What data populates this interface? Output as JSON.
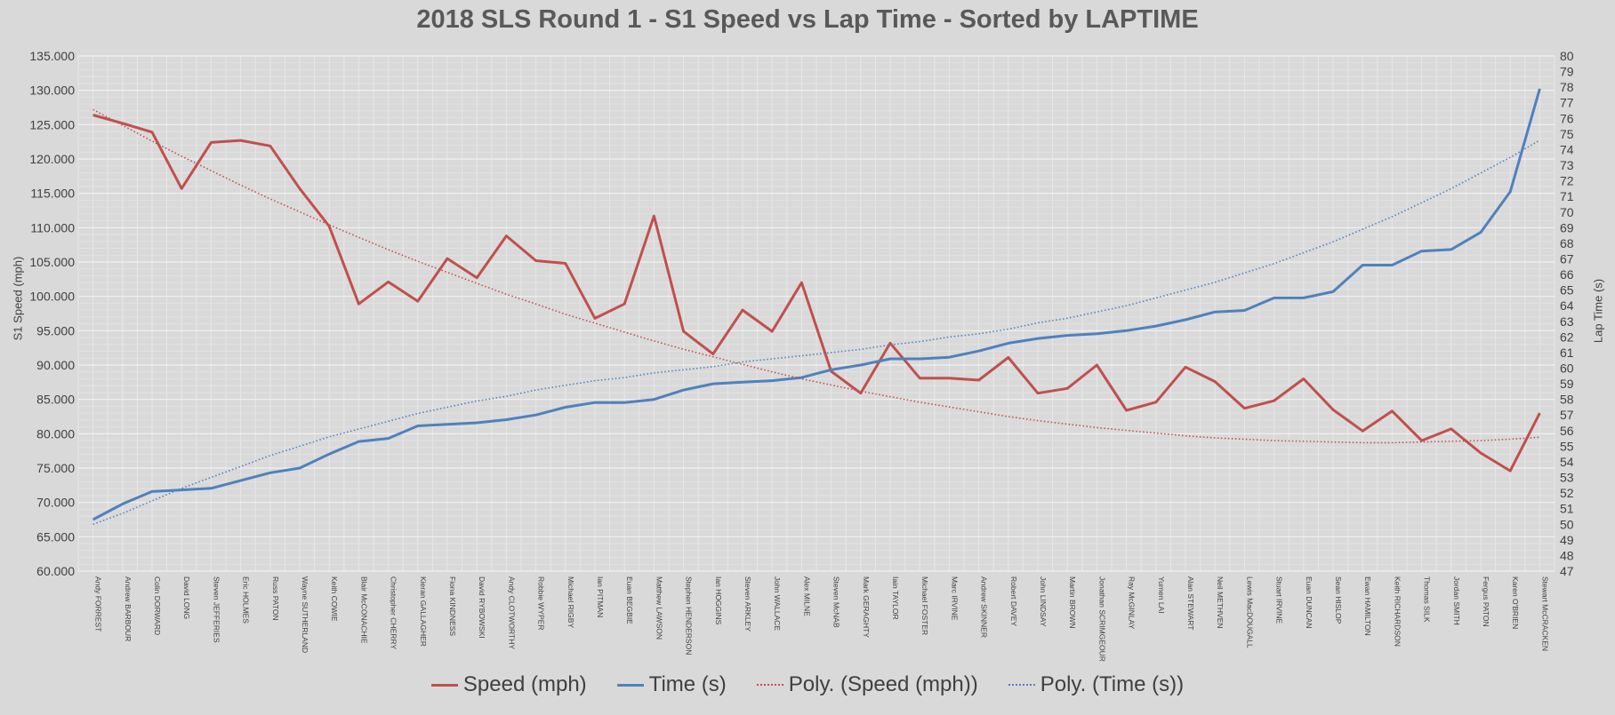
{
  "chart_data": {
    "type": "line",
    "title": "2018 SLS Round 1 - S1 Speed vs Lap Time - Sorted by LAPTIME",
    "ylabel": "S1 Speed (mph)",
    "y2label": "Lap Time (s)",
    "ylim": [
      60,
      135
    ],
    "y2lim": [
      47,
      80
    ],
    "ytick_labels": [
      "60.000",
      "65.000",
      "70.000",
      "75.000",
      "80.000",
      "85.000",
      "90.000",
      "95.000",
      "100.000",
      "105.000",
      "110.000",
      "115.000",
      "120.000",
      "125.000",
      "130.000",
      "135.000"
    ],
    "y2tick_labels": [
      "47",
      "48",
      "49",
      "50",
      "51",
      "52",
      "53",
      "54",
      "55",
      "56",
      "57",
      "58",
      "59",
      "60",
      "61",
      "62",
      "63",
      "64",
      "65",
      "66",
      "67",
      "68",
      "69",
      "70",
      "71",
      "72",
      "73",
      "74",
      "75",
      "76",
      "77",
      "78",
      "79",
      "80"
    ],
    "grid": true,
    "legend_position": "bottom",
    "categories": [
      "Andy FORREST",
      "Andrew BARBOUR",
      "Colin DORWARD",
      "David LONG",
      "Steven JEFFERIES",
      "Eric HOLMES",
      "Russ PATON",
      "Wayne SUTHERLAND",
      "Keith COWIE",
      "Blair McCONACHIE",
      "Christopher CHERRY",
      "Kieran GALLAGHER",
      "Fiona KINDNESS",
      "David RYBOWSKI",
      "Andy CLOTWORTHY",
      "Robbie WYPER",
      "Michael RIGBY",
      "Ian PITMAN",
      "Euan BEGBIE",
      "Matthew LAWSON",
      "Stephen HENDERSON",
      "Ian HOGGINS",
      "Steven ARKLEY",
      "John WALLACE",
      "Alex MILNE",
      "Steven McNAB",
      "Mark GERAGHTY",
      "Iain TAYLOR",
      "Michael FOSTER",
      "Marc IRVINE",
      "Andrew SKINNER",
      "Robert DAVEY",
      "John LINDSAY",
      "Martin BROWN",
      "Jonathan SCRIMGEOUR",
      "Ray McGINLAY",
      "Yumen LAI",
      "Alan STEWART",
      "Neil METHVEN",
      "Lewis MacDOUGALL",
      "Stuart IRVINE",
      "Euan DUNCAN",
      "Sean HISLOP",
      "Ewan HAMILTON",
      "Keith RICHARDSON",
      "Thomas SILK",
      "Jordan SMITH",
      "Fergus PATON",
      "Karen O'BRIEN",
      "Stewart McCRACKEN"
    ],
    "series": [
      {
        "name": "Speed (mph)",
        "axis": "left",
        "style": "solid",
        "color": "#c0504d",
        "values": [
          126.4,
          125.2,
          123.9,
          115.7,
          122.4,
          122.7,
          121.9,
          115.7,
          110.2,
          98.9,
          102.1,
          99.3,
          105.5,
          102.7,
          108.8,
          105.2,
          104.8,
          96.8,
          98.9,
          111.7,
          94.9,
          91.6,
          98.0,
          94.9,
          102.0,
          89.1,
          85.9,
          93.2,
          88.1,
          88.1,
          87.8,
          91.1,
          85.9,
          86.6,
          90.0,
          83.4,
          84.6,
          89.7,
          87.6,
          83.7,
          84.8,
          88.0,
          83.5,
          80.4,
          83.3,
          79.0,
          80.7,
          77.2,
          74.6,
          83.0
        ]
      },
      {
        "name": "Time (s)",
        "axis": "right",
        "style": "solid",
        "color": "#4f81bd",
        "values": [
          50.3,
          51.3,
          52.1,
          52.2,
          52.3,
          52.8,
          53.3,
          53.6,
          54.5,
          55.3,
          55.5,
          56.3,
          56.4,
          56.5,
          56.7,
          57.0,
          57.5,
          57.8,
          57.8,
          58.0,
          58.6,
          59.0,
          59.1,
          59.2,
          59.4,
          59.9,
          60.2,
          60.6,
          60.6,
          60.7,
          61.1,
          61.6,
          61.9,
          62.1,
          62.2,
          62.4,
          62.7,
          63.1,
          63.6,
          63.7,
          64.5,
          64.5,
          64.9,
          66.6,
          66.6,
          67.5,
          67.6,
          68.7,
          71.3,
          77.9
        ]
      },
      {
        "name": "Poly. (Speed (mph))",
        "axis": "left",
        "style": "dotted",
        "color": "#c0504d",
        "values": [
          127.2,
          124.9,
          122.6,
          120.4,
          118.3,
          116.2,
          114.2,
          112.3,
          110.4,
          108.6,
          106.8,
          105.1,
          103.5,
          101.9,
          100.3,
          98.9,
          97.4,
          96.1,
          94.8,
          93.5,
          92.3,
          91.2,
          90.1,
          89.0,
          88.0,
          87.1,
          86.2,
          85.4,
          84.6,
          83.9,
          83.2,
          82.5,
          81.9,
          81.4,
          80.9,
          80.5,
          80.1,
          79.7,
          79.4,
          79.2,
          79.0,
          78.9,
          78.8,
          78.7,
          78.7,
          78.8,
          78.9,
          79.0,
          79.2,
          79.5
        ]
      },
      {
        "name": "Poly. (Time (s))",
        "axis": "right",
        "style": "dotted",
        "color": "#4f81bd",
        "values": [
          50.0,
          50.7,
          51.5,
          52.3,
          53.0,
          53.7,
          54.4,
          55.0,
          55.6,
          56.1,
          56.6,
          57.1,
          57.5,
          57.9,
          58.2,
          58.6,
          58.9,
          59.2,
          59.4,
          59.7,
          59.9,
          60.1,
          60.4,
          60.6,
          60.8,
          61.0,
          61.2,
          61.5,
          61.7,
          62.0,
          62.2,
          62.5,
          62.9,
          63.2,
          63.6,
          64.0,
          64.5,
          65.0,
          65.5,
          66.1,
          66.7,
          67.4,
          68.1,
          68.9,
          69.7,
          70.6,
          71.5,
          72.5,
          73.5,
          74.6
        ]
      }
    ]
  }
}
